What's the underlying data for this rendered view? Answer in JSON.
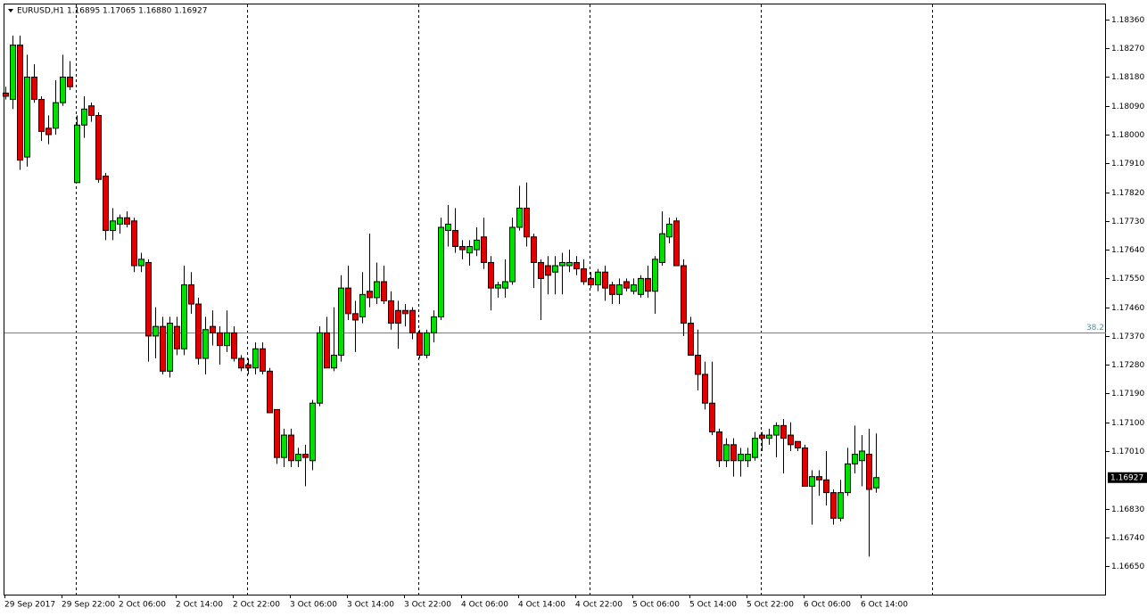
{
  "chart_data": {
    "type": "candlestick",
    "title": "EURUSD,H1  1.16895 1.17065 1.16880 1.16927",
    "categories": [
      "29 Sep 2017",
      null,
      null,
      null,
      null,
      null,
      null,
      null,
      "29 Sep 22:00",
      null,
      null,
      null,
      null,
      null,
      null,
      null,
      "2 Oct 06:00",
      null,
      null,
      null,
      null,
      null,
      null,
      null,
      "2 Oct 14:00",
      null,
      null,
      null,
      null,
      null,
      null,
      null,
      "2 Oct 22:00",
      null,
      null,
      null,
      null,
      null,
      null,
      null,
      "3 Oct 06:00",
      null,
      null,
      null,
      null,
      null,
      null,
      null,
      "3 Oct 14:00",
      null,
      null,
      null,
      null,
      null,
      null,
      null,
      "3 Oct 22:00",
      null,
      null,
      null,
      null,
      null,
      null,
      null,
      "4 Oct 06:00",
      null,
      null,
      null,
      null,
      null,
      null,
      null,
      "4 Oct 14:00",
      null,
      null,
      null,
      null,
      null,
      null,
      null,
      "4 Oct 22:00",
      null,
      null,
      null,
      null,
      null,
      null,
      null,
      "5 Oct 06:00",
      null,
      null,
      null,
      null,
      null,
      null,
      null,
      "5 Oct 14:00",
      null,
      null,
      null,
      null,
      null,
      null,
      null,
      "5 Oct 22:00",
      null,
      null,
      null,
      null,
      null,
      null,
      null,
      "6 Oct 06:00",
      null,
      null,
      null,
      null,
      null,
      null,
      null,
      "6 Oct 14:00",
      null,
      null
    ],
    "open": [
      1.1813,
      1.1811,
      1.1828,
      1.1793,
      1.1818,
      1.1811,
      1.1802,
      1.1802,
      1.181,
      1.1818,
      1.1785,
      1.1803,
      1.1809,
      1.1806,
      1.1787,
      1.177,
      1.1772,
      1.1774,
      1.1773,
      1.1759,
      1.176,
      1.1737,
      1.174,
      1.1726,
      1.174,
      1.1733,
      1.1753,
      1.1747,
      1.173,
      1.174,
      1.1738,
      1.1734,
      1.1738,
      1.173,
      1.1728,
      1.1727,
      1.1733,
      1.1726,
      1.1714,
      1.1699,
      1.1706,
      1.1698,
      1.17,
      1.1698,
      1.1716,
      1.1738,
      1.1727,
      1.1731,
      1.1752,
      1.1744,
      1.1743,
      1.1751,
      1.1749,
      1.1754,
      1.1748,
      1.1745,
      1.1745,
      1.1745,
      1.1738,
      1.1731,
      1.1738,
      1.1743,
      1.177,
      1.177,
      1.1765,
      1.1763,
      1.1764,
      1.1768,
      1.176,
      1.1752,
      1.1752,
      1.1754,
      1.1771,
      1.1777,
      1.1768,
      1.176,
      1.1759,
      1.1757,
      1.1759,
      1.1759,
      1.176,
      1.1758,
      1.1755,
      1.1753,
      1.1757,
      1.1753,
      1.175,
      1.1754,
      1.1751,
      1.175,
      1.1755,
      1.1751,
      1.176,
      1.1768,
      1.1773,
      1.1759,
      1.1741,
      1.1731,
      1.1725,
      1.1716,
      1.1707,
      1.1698,
      1.1703,
      1.1698,
      1.1698,
      1.1699,
      1.1706,
      1.1705,
      1.1706,
      1.1709,
      1.1706,
      1.1704,
      1.1702,
      1.169,
      1.1693,
      1.1692,
      1.1688,
      1.168,
      1.1688,
      1.1697,
      1.1698,
      1.17,
      1.16895
    ],
    "high": [
      1.1815,
      1.1831,
      1.1831,
      1.1825,
      1.1822,
      1.1812,
      1.1806,
      1.1817,
      1.1825,
      1.1823,
      1.1806,
      1.1812,
      1.181,
      1.1807,
      1.1788,
      1.1777,
      1.1775,
      1.1776,
      1.1774,
      1.1763,
      1.1761,
      1.1746,
      1.1743,
      1.1743,
      1.1743,
      1.1759,
      1.1757,
      1.1749,
      1.1743,
      1.1745,
      1.174,
      1.1745,
      1.174,
      1.1731,
      1.173,
      1.1735,
      1.1735,
      1.1727,
      1.1714,
      1.1708,
      1.1708,
      1.1702,
      1.1703,
      1.1717,
      1.174,
      1.1743,
      1.1746,
      1.1756,
      1.1759,
      1.1748,
      1.1757,
      1.1769,
      1.176,
      1.1759,
      1.1751,
      1.1748,
      1.1747,
      1.1746,
      1.1739,
      1.1739,
      1.1745,
      1.1774,
      1.1778,
      1.1777,
      1.1767,
      1.1767,
      1.1771,
      1.1774,
      1.1762,
      1.1754,
      1.1761,
      1.1774,
      1.1784,
      1.1785,
      1.1769,
      1.1761,
      1.1762,
      1.1762,
      1.1763,
      1.1764,
      1.1762,
      1.1761,
      1.1757,
      1.1758,
      1.1759,
      1.1754,
      1.1755,
      1.1755,
      1.1755,
      1.1756,
      1.1759,
      1.1762,
      1.1776,
      1.1774,
      1.1774,
      1.1761,
      1.1743,
      1.1739,
      1.1729,
      1.1729,
      1.1708,
      1.1705,
      1.1705,
      1.1702,
      1.1702,
      1.1707,
      1.1707,
      1.1708,
      1.171,
      1.1711,
      1.171,
      1.1704,
      1.1703,
      1.1695,
      1.1695,
      1.1701,
      1.1689,
      1.1692,
      1.1702,
      1.1709,
      1.1706,
      1.1708,
      1.17065
    ],
    "low": [
      1.1811,
      1.1808,
      1.1789,
      1.179,
      1.181,
      1.1798,
      1.1797,
      1.18,
      1.1809,
      1.1814,
      1.1785,
      1.1799,
      1.1804,
      1.1785,
      1.1767,
      1.1767,
      1.1769,
      1.1771,
      1.1757,
      1.1757,
      1.1729,
      1.173,
      1.1725,
      1.1724,
      1.1731,
      1.1731,
      1.1744,
      1.1728,
      1.1725,
      1.1734,
      1.1728,
      1.1732,
      1.1729,
      1.1726,
      1.1725,
      1.1725,
      1.1725,
      1.1713,
      1.1697,
      1.1696,
      1.1696,
      1.1696,
      1.169,
      1.1695,
      1.1715,
      1.1727,
      1.1726,
      1.1729,
      1.1742,
      1.1732,
      1.1741,
      1.1746,
      1.1747,
      1.1747,
      1.1739,
      1.1733,
      1.174,
      1.1736,
      1.173,
      1.173,
      1.1735,
      1.1742,
      1.1765,
      1.1763,
      1.1761,
      1.1759,
      1.1762,
      1.1758,
      1.1745,
      1.1749,
      1.1749,
      1.1753,
      1.177,
      1.1765,
      1.1752,
      1.1742,
      1.175,
      1.175,
      1.175,
      1.1757,
      1.1756,
      1.1753,
      1.1752,
      1.1751,
      1.1748,
      1.1747,
      1.1747,
      1.1751,
      1.175,
      1.1749,
      1.1749,
      1.1744,
      1.1759,
      1.1766,
      1.1759,
      1.1737,
      1.1731,
      1.172,
      1.1714,
      1.1706,
      1.1696,
      1.1696,
      1.1693,
      1.1693,
      1.1696,
      1.1698,
      1.1701,
      1.1703,
      1.1699,
      1.1694,
      1.1701,
      1.1701,
      1.169,
      1.1678,
      1.1687,
      1.1684,
      1.1678,
      1.1679,
      1.1687,
      1.1694,
      1.169,
      1.1668,
      1.1688
    ],
    "close": [
      1.1812,
      1.1828,
      1.1792,
      1.1818,
      1.1811,
      1.1801,
      1.18,
      1.181,
      1.1818,
      1.1815,
      1.1803,
      1.1808,
      1.1806,
      1.1786,
      1.177,
      1.1773,
      1.1774,
      1.1772,
      1.1759,
      1.1761,
      1.1737,
      1.174,
      1.1726,
      1.1741,
      1.1733,
      1.1753,
      1.1747,
      1.173,
      1.1739,
      1.1738,
      1.1734,
      1.1738,
      1.173,
      1.1727,
      1.1727,
      1.1733,
      1.1726,
      1.1713,
      1.1699,
      1.1706,
      1.1698,
      1.17,
      1.1699,
      1.1716,
      1.1738,
      1.1727,
      1.1731,
      1.1752,
      1.1744,
      1.1742,
      1.175,
      1.1749,
      1.1754,
      1.1748,
      1.1741,
      1.1741,
      1.1744,
      1.1738,
      1.1731,
      1.1738,
      1.1743,
      1.1771,
      1.1772,
      1.1765,
      1.1764,
      1.1765,
      1.1767,
      1.176,
      1.1752,
      1.1753,
      1.1754,
      1.1771,
      1.1777,
      1.1768,
      1.176,
      1.1755,
      1.1756,
      1.1759,
      1.176,
      1.176,
      1.1758,
      1.1754,
      1.1753,
      1.1757,
      1.1752,
      1.175,
      1.1753,
      1.1752,
      1.1753,
      1.1755,
      1.1751,
      1.1761,
      1.1769,
      1.1772,
      1.1759,
      1.1741,
      1.1731,
      1.1725,
      1.1716,
      1.1707,
      1.1698,
      1.1703,
      1.1698,
      1.17,
      1.17,
      1.1705,
      1.1705,
      1.1706,
      1.1709,
      1.1705,
      1.1703,
      1.1702,
      1.169,
      1.1693,
      1.1692,
      1.1688,
      1.168,
      1.1688,
      1.1697,
      1.17,
      1.1701,
      1.1689,
      1.16927
    ],
    "up_color": "#00e000",
    "down_color": "#e00000",
    "ylim": [
      1.16561,
      1.1841
    ],
    "yticks": [
      {
        "value": 1.1836,
        "label": "1.18360"
      },
      {
        "value": 1.1827,
        "label": "1.18270"
      },
      {
        "value": 1.1818,
        "label": "1.18180"
      },
      {
        "value": 1.1809,
        "label": "1.18090"
      },
      {
        "value": 1.18,
        "label": "1.18000"
      },
      {
        "value": 1.1791,
        "label": "1.17910"
      },
      {
        "value": 1.1782,
        "label": "1.17820"
      },
      {
        "value": 1.1773,
        "label": "1.17730"
      },
      {
        "value": 1.1764,
        "label": "1.17640"
      },
      {
        "value": 1.1755,
        "label": "1.17550"
      },
      {
        "value": 1.1746,
        "label": "1.17460"
      },
      {
        "value": 1.1737,
        "label": "1.17370"
      },
      {
        "value": 1.1728,
        "label": "1.17280"
      },
      {
        "value": 1.1719,
        "label": "1.17190"
      },
      {
        "value": 1.171,
        "label": "1.17100"
      },
      {
        "value": 1.1701,
        "label": "1.17010"
      },
      {
        "value": 1.1683,
        "label": "1.16830"
      },
      {
        "value": 1.1674,
        "label": "1.16740"
      },
      {
        "value": 1.1665,
        "label": "1.16650"
      }
    ],
    "hlines": [
      {
        "value": 1.17381,
        "label": "38.2",
        "color": "#4f8fa6"
      }
    ],
    "grid": false
  }
}
